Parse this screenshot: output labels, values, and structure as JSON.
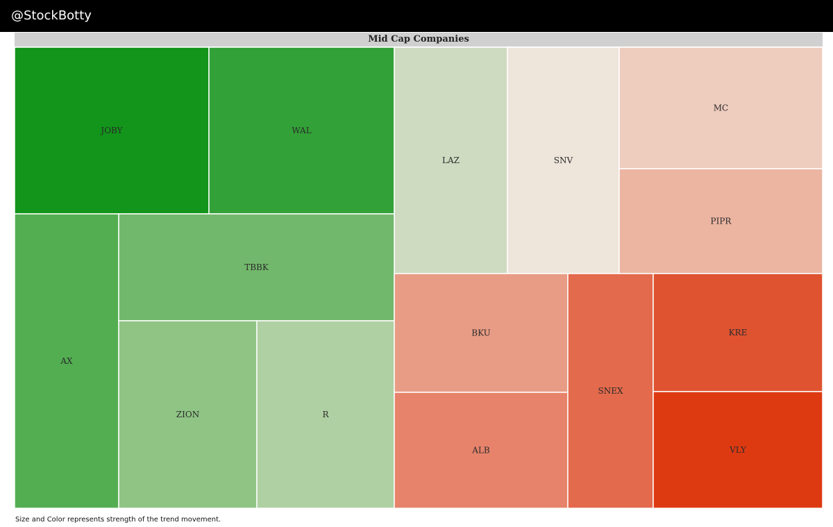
{
  "header": {
    "handle": "@StockBotty"
  },
  "chart_data": {
    "type": "treemap",
    "title": "Mid Cap Companies",
    "tiles": [
      {
        "label": "JOBY",
        "color": "#12951A"
      },
      {
        "label": "WAL",
        "color": "#32A137"
      },
      {
        "label": "LAZ",
        "color": "#CFDBC1"
      },
      {
        "label": "SNV",
        "color": "#EEE5DB"
      },
      {
        "label": "MC",
        "color": "#EECCBE"
      },
      {
        "label": "PIPR",
        "color": "#EBB5A2"
      },
      {
        "label": "AX",
        "color": "#53AE51"
      },
      {
        "label": "TBBK",
        "color": "#72B86C"
      },
      {
        "label": "ZION",
        "color": "#8FC485"
      },
      {
        "label": "R",
        "color": "#AFD0A3"
      },
      {
        "label": "BKU",
        "color": "#E89C85"
      },
      {
        "label": "ALB",
        "color": "#E7836B"
      },
      {
        "label": "SNEX",
        "color": "#E36A4C"
      },
      {
        "label": "KRE",
        "color": "#DF5331"
      },
      {
        "label": "VLY",
        "color": "#DE3A12"
      }
    ]
  },
  "footnote": "Size and Color represents strength of the trend movement."
}
